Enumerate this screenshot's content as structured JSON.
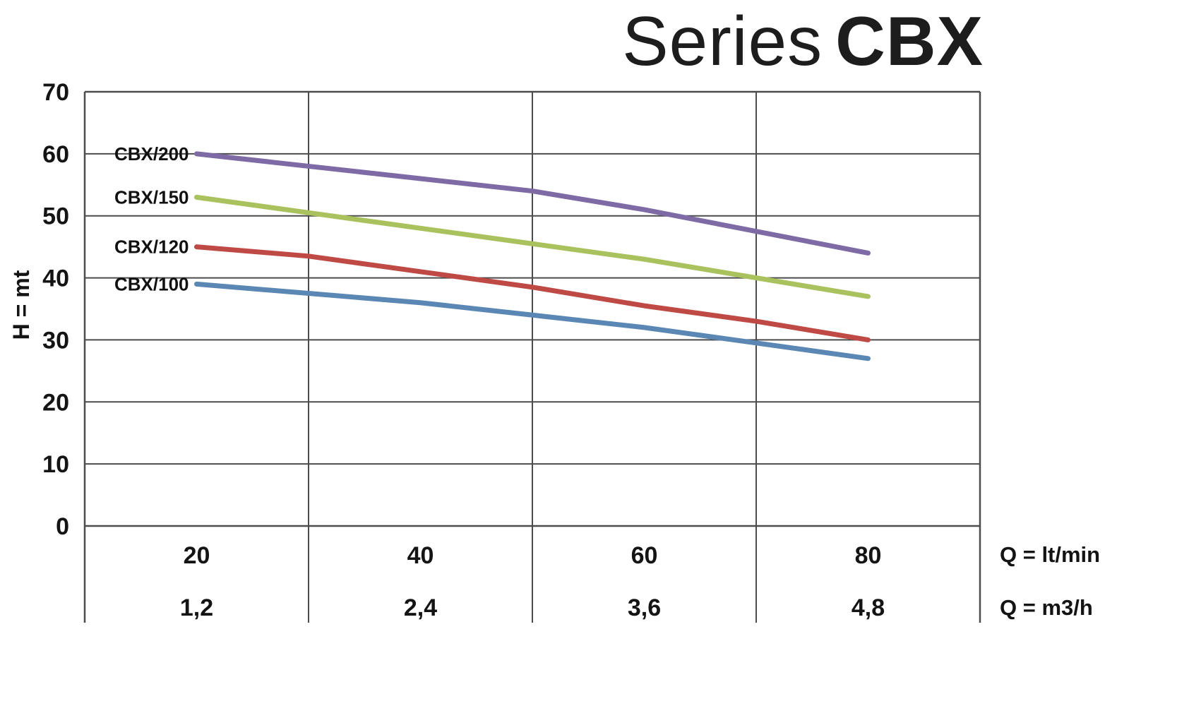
{
  "header": {
    "title_light": "Series",
    "title_bold": "CBX"
  },
  "chart_data": {
    "type": "line",
    "title": "Series CBX",
    "ylabel": "H = mt",
    "xlabel_primary": "Q = lt/min",
    "xlabel_secondary": "Q = m3/h",
    "xlim": [
      10,
      90
    ],
    "ylim": [
      0,
      70
    ],
    "grid": true,
    "legend_position": "inline-left-of-curves",
    "y_ticks": [
      0,
      10,
      20,
      30,
      40,
      50,
      60,
      70
    ],
    "x_gridlines": [
      30,
      50,
      70
    ],
    "x_tick_positions": [
      20,
      40,
      60,
      80
    ],
    "x_ticks_ltmin": [
      "20",
      "40",
      "60",
      "80"
    ],
    "x_ticks_m3h": [
      "1,2",
      "2,4",
      "3,6",
      "4,8"
    ],
    "x": [
      20,
      30,
      40,
      50,
      60,
      70,
      80
    ],
    "series": [
      {
        "name": "CBX/200",
        "color": "#7e6ba6",
        "values": [
          60,
          58,
          56,
          54,
          51,
          47.5,
          44
        ]
      },
      {
        "name": "CBX/150",
        "color": "#a9c25d",
        "values": [
          53,
          50.5,
          48,
          45.5,
          43,
          40,
          37
        ]
      },
      {
        "name": "CBX/120",
        "color": "#bf4a45",
        "values": [
          45,
          43.5,
          41,
          38.5,
          35.5,
          33,
          30
        ]
      },
      {
        "name": "CBX/100",
        "color": "#5a87b4",
        "values": [
          39,
          37.5,
          36,
          34,
          32,
          29.5,
          27
        ]
      }
    ],
    "style": {
      "grid_color": "#4c4c4c",
      "text_color": "#141414",
      "line_width": 7
    }
  }
}
